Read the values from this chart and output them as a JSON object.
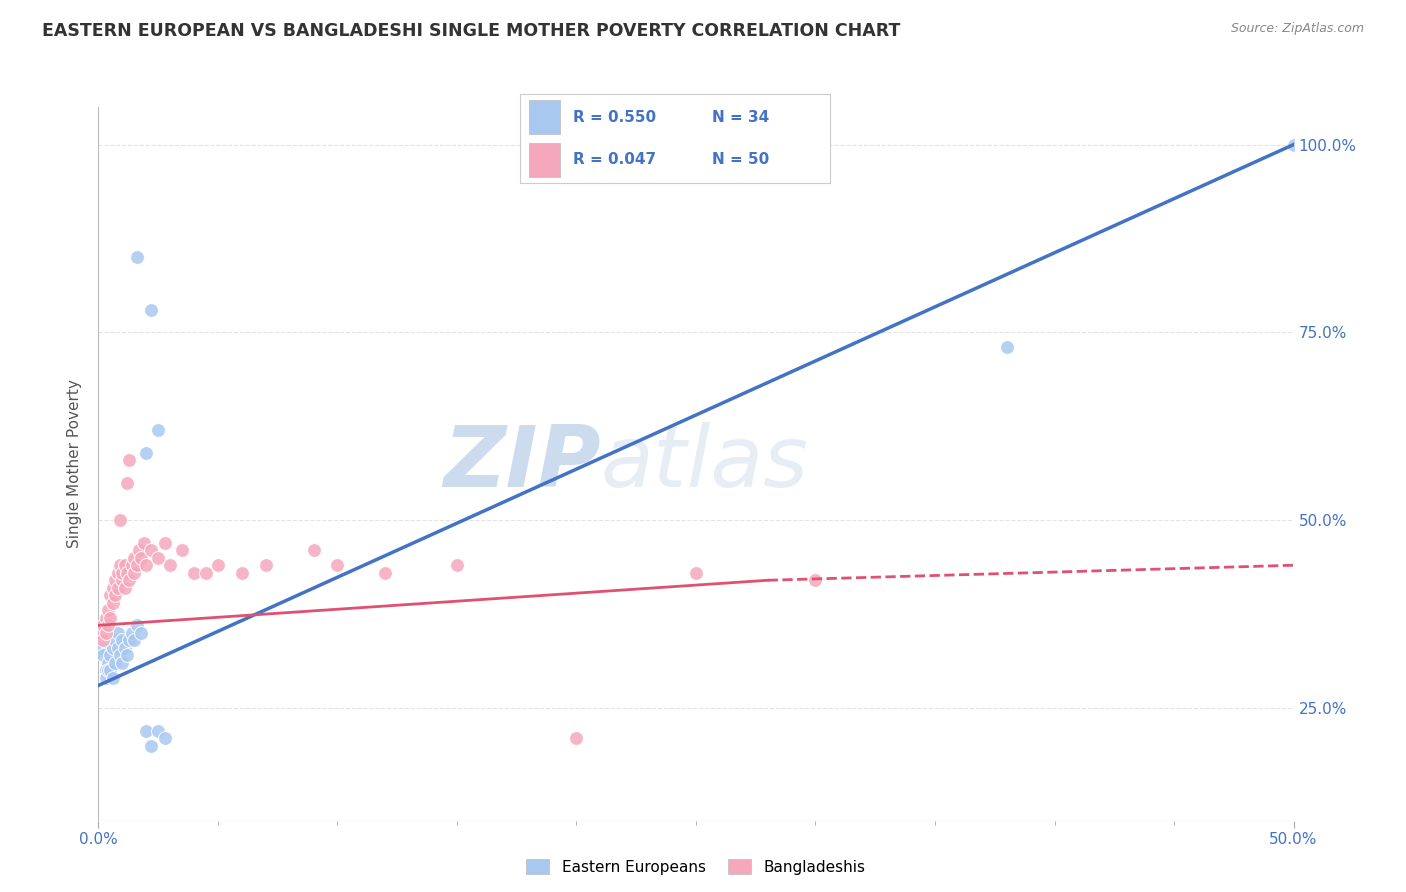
{
  "title": "EASTERN EUROPEAN VS BANGLADESHI SINGLE MOTHER POVERTY CORRELATION CHART",
  "source": "Source: ZipAtlas.com",
  "ylabel": "Single Mother Poverty",
  "legend_r1": "R = 0.550",
  "legend_n1": "N = 34",
  "legend_r2": "R = 0.047",
  "legend_n2": "N = 50",
  "watermark": "ZIPatlas",
  "ee_color": "#A8C8F0",
  "bd_color": "#F5A8BC",
  "ee_line_color": "#4472C4",
  "bd_line_color": "#E05070",
  "ee_scatter": [
    [
      0.001,
      0.33
    ],
    [
      0.002,
      0.32
    ],
    [
      0.003,
      0.3
    ],
    [
      0.003,
      0.29
    ],
    [
      0.004,
      0.31
    ],
    [
      0.004,
      0.3
    ],
    [
      0.005,
      0.32
    ],
    [
      0.005,
      0.3
    ],
    [
      0.006,
      0.33
    ],
    [
      0.006,
      0.29
    ],
    [
      0.007,
      0.34
    ],
    [
      0.007,
      0.31
    ],
    [
      0.008,
      0.35
    ],
    [
      0.008,
      0.33
    ],
    [
      0.009,
      0.32
    ],
    [
      0.01,
      0.34
    ],
    [
      0.01,
      0.31
    ],
    [
      0.011,
      0.33
    ],
    [
      0.012,
      0.32
    ],
    [
      0.013,
      0.34
    ],
    [
      0.014,
      0.35
    ],
    [
      0.015,
      0.34
    ],
    [
      0.016,
      0.36
    ],
    [
      0.018,
      0.35
    ],
    [
      0.02,
      0.22
    ],
    [
      0.022,
      0.2
    ],
    [
      0.025,
      0.22
    ],
    [
      0.028,
      0.21
    ],
    [
      0.02,
      0.59
    ],
    [
      0.025,
      0.62
    ],
    [
      0.016,
      0.85
    ],
    [
      0.022,
      0.78
    ],
    [
      0.38,
      0.73
    ],
    [
      0.5,
      1.0
    ]
  ],
  "bd_scatter": [
    [
      0.001,
      0.35
    ],
    [
      0.002,
      0.36
    ],
    [
      0.002,
      0.34
    ],
    [
      0.003,
      0.37
    ],
    [
      0.003,
      0.35
    ],
    [
      0.004,
      0.36
    ],
    [
      0.004,
      0.38
    ],
    [
      0.005,
      0.37
    ],
    [
      0.005,
      0.4
    ],
    [
      0.006,
      0.39
    ],
    [
      0.006,
      0.41
    ],
    [
      0.007,
      0.4
    ],
    [
      0.007,
      0.42
    ],
    [
      0.008,
      0.41
    ],
    [
      0.008,
      0.43
    ],
    [
      0.009,
      0.5
    ],
    [
      0.009,
      0.44
    ],
    [
      0.01,
      0.42
    ],
    [
      0.01,
      0.43
    ],
    [
      0.011,
      0.44
    ],
    [
      0.011,
      0.41
    ],
    [
      0.012,
      0.43
    ],
    [
      0.012,
      0.55
    ],
    [
      0.013,
      0.58
    ],
    [
      0.013,
      0.42
    ],
    [
      0.014,
      0.44
    ],
    [
      0.015,
      0.43
    ],
    [
      0.015,
      0.45
    ],
    [
      0.016,
      0.44
    ],
    [
      0.017,
      0.46
    ],
    [
      0.018,
      0.45
    ],
    [
      0.019,
      0.47
    ],
    [
      0.02,
      0.44
    ],
    [
      0.022,
      0.46
    ],
    [
      0.025,
      0.45
    ],
    [
      0.028,
      0.47
    ],
    [
      0.03,
      0.44
    ],
    [
      0.035,
      0.46
    ],
    [
      0.04,
      0.43
    ],
    [
      0.045,
      0.43
    ],
    [
      0.05,
      0.44
    ],
    [
      0.06,
      0.43
    ],
    [
      0.07,
      0.44
    ],
    [
      0.09,
      0.46
    ],
    [
      0.1,
      0.44
    ],
    [
      0.12,
      0.43
    ],
    [
      0.15,
      0.44
    ],
    [
      0.2,
      0.21
    ],
    [
      0.25,
      0.43
    ],
    [
      0.3,
      0.42
    ]
  ],
  "xmin": 0.0,
  "xmax": 0.5,
  "ymin": 0.1,
  "ymax": 1.05,
  "background_color": "#FFFFFF",
  "grid_color": "#DDDDDD"
}
